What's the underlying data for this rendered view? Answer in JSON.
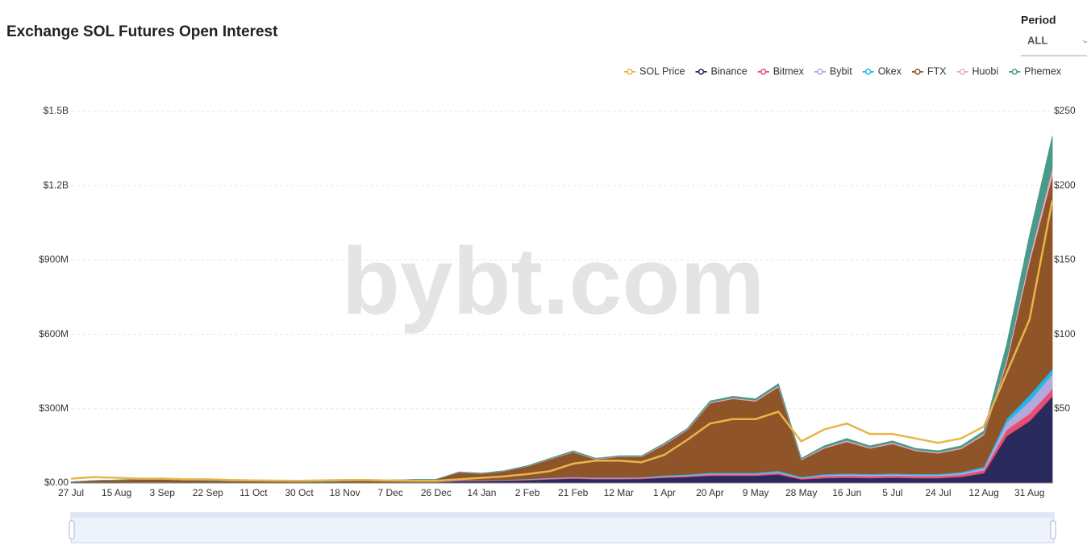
{
  "title": "Exchange SOL Futures Open Interest",
  "period": {
    "label": "Period",
    "value": "ALL"
  },
  "chart_data": {
    "type": "area",
    "watermark": "bybt.com",
    "categories": [
      "27 Jul",
      null,
      "15 Aug",
      null,
      "3 Sep",
      null,
      "22 Sep",
      null,
      "11 Oct",
      null,
      "30 Oct",
      null,
      "18 Nov",
      null,
      "7 Dec",
      null,
      "26 Dec",
      null,
      "14 Jan",
      null,
      "2 Feb",
      null,
      "21 Feb",
      null,
      "12 Mar",
      null,
      "1 Apr",
      null,
      "20 Apr",
      null,
      "9 May",
      null,
      "28 May",
      null,
      "16 Jun",
      null,
      "5 Jul",
      null,
      "24 Jul",
      null,
      "12 Aug",
      null,
      "31 Aug",
      null
    ],
    "ylim": [
      0,
      1500000000
    ],
    "yticks": [
      {
        "value": 0,
        "label": "$0.00"
      },
      {
        "value": 300000000,
        "label": "$300M"
      },
      {
        "value": 600000000,
        "label": "$600M"
      },
      {
        "value": 900000000,
        "label": "$900M"
      },
      {
        "value": 1200000000,
        "label": "$1.2B"
      },
      {
        "value": 1500000000,
        "label": "$1.5B"
      }
    ],
    "y2lim": [
      0,
      250
    ],
    "y2ticks": [
      {
        "value": 50,
        "label": "$50"
      },
      {
        "value": 100,
        "label": "$100"
      },
      {
        "value": 150,
        "label": "$150"
      },
      {
        "value": 200,
        "label": "$200"
      },
      {
        "value": 250,
        "label": "$250"
      }
    ],
    "grid": true,
    "stacked": true,
    "legend": "top-right",
    "series": [
      {
        "name": "SOL Price",
        "type": "line",
        "axis": "y2",
        "color": "#e8b54a",
        "values": [
          3,
          4,
          3.5,
          3,
          3,
          2.5,
          2.5,
          2,
          1.8,
          1.6,
          1.5,
          1.8,
          2,
          2,
          1.6,
          1.5,
          1.5,
          2.5,
          3.5,
          4.5,
          6,
          8,
          13,
          15,
          15,
          14,
          19,
          29,
          40,
          43,
          43,
          48,
          28,
          36,
          40,
          33,
          33,
          30,
          27,
          30,
          38,
          74,
          110,
          190
        ]
      },
      {
        "name": "Binance",
        "color": "#2b2a5e",
        "values": [
          1000000.0,
          2000000.0,
          2000000.0,
          3000000.0,
          3000000.0,
          2000000.0,
          2000000.0,
          2000000.0,
          2000000.0,
          2000000.0,
          1000000.0,
          1000000.0,
          2000000.0,
          2000000.0,
          2000000.0,
          3000000.0,
          3000000.0,
          8000000.0,
          8000000.0,
          10000000.0,
          12000000.0,
          15000000.0,
          18000000.0,
          16000000.0,
          16000000.0,
          17000000.0,
          22000000.0,
          25000000.0,
          30000000.0,
          30000000.0,
          30000000.0,
          35000000.0,
          15000000.0,
          20000000.0,
          22000000.0,
          20000000.0,
          22000000.0,
          20000000.0,
          20000000.0,
          25000000.0,
          40000000.0,
          190000000.0,
          250000000.0,
          350000000.0
        ]
      },
      {
        "name": "Bitmex",
        "color": "#e94d6f",
        "values": [
          500000.0,
          1000000.0,
          1000000.0,
          1000000.0,
          1000000.0,
          1000000.0,
          1000000.0,
          1000000.0,
          1000000.0,
          1000000.0,
          1000000.0,
          1000000.0,
          1000000.0,
          1000000.0,
          1000000.0,
          1000000.0,
          1000000.0,
          2000000.0,
          2000000.0,
          2000000.0,
          2000000.0,
          3000000.0,
          3000000.0,
          3000000.0,
          3000000.0,
          3000000.0,
          3000000.0,
          4000000.0,
          5000000.0,
          5000000.0,
          5000000.0,
          6000000.0,
          4000000.0,
          8000000.0,
          8000000.0,
          8000000.0,
          8000000.0,
          8000000.0,
          8000000.0,
          9000000.0,
          12000000.0,
          25000000.0,
          30000000.0,
          30000000.0
        ]
      },
      {
        "name": "Bybit",
        "color": "#b5a8dc",
        "values": [
          0,
          0,
          0,
          0,
          0,
          0,
          0,
          0,
          0,
          0,
          0,
          0,
          0,
          0,
          0,
          0,
          0,
          1000000.0,
          1000000.0,
          1000000.0,
          2000000.0,
          2000000.0,
          2000000.0,
          2000000.0,
          2000000.0,
          2000000.0,
          3000000.0,
          3000000.0,
          3000000.0,
          3000000.0,
          3000000.0,
          4000000.0,
          3000000.0,
          4000000.0,
          5000000.0,
          5000000.0,
          5000000.0,
          5000000.0,
          5000000.0,
          6000000.0,
          8000000.0,
          30000000.0,
          50000000.0,
          60000000.0
        ]
      },
      {
        "name": "Okex",
        "color": "#1fb8e8",
        "values": [
          0,
          0,
          0,
          0,
          0,
          0,
          0,
          0,
          0,
          0,
          0,
          0,
          0,
          0,
          0,
          0,
          0,
          1000000.0,
          1000000.0,
          1000000.0,
          1000000.0,
          2000000.0,
          2000000.0,
          2000000.0,
          2000000.0,
          2000000.0,
          3000000.0,
          3000000.0,
          4000000.0,
          4000000.0,
          4000000.0,
          5000000.0,
          3000000.0,
          4000000.0,
          4000000.0,
          4000000.0,
          4000000.0,
          4000000.0,
          4000000.0,
          5000000.0,
          6000000.0,
          15000000.0,
          25000000.0,
          20000000.0
        ]
      },
      {
        "name": "FTX",
        "color": "#8f5428",
        "values": [
          3500000.0,
          7000000.0,
          9000000.0,
          11000000.0,
          11000000.0,
          9000000.0,
          7000000.0,
          5000000.0,
          5000000.0,
          4000000.0,
          4000000.0,
          4000000.0,
          5000000.0,
          7000000.0,
          9000000.0,
          10000000.0,
          11000000.0,
          31000000.0,
          26000000.0,
          34000000.0,
          50000000.0,
          74000000.0,
          100000000.0,
          73000000.0,
          83000000.0,
          82000000.0,
          124000000.0,
          179000000.0,
          280000000.0,
          298000000.0,
          288000000.0,
          338000000.0,
          68000000.0,
          104000000.0,
          128000000.0,
          103000000.0,
          119000000.0,
          93000000.0,
          83000000.0,
          93000000.0,
          128000000.0,
          225000000.0,
          535000000.0,
          780000000.0
        ]
      },
      {
        "name": "Huobi",
        "color": "#f0a6c4",
        "values": [
          0,
          0,
          0,
          0,
          0,
          0,
          0,
          0,
          0,
          0,
          0,
          0,
          0,
          0,
          0,
          0,
          0,
          1000000.0,
          1000000.0,
          1000000.0,
          1000000.0,
          2000000.0,
          2000000.0,
          2000000.0,
          2000000.0,
          2000000.0,
          3000000.0,
          3000000.0,
          4000000.0,
          4000000.0,
          4000000.0,
          5000000.0,
          3000000.0,
          4000000.0,
          5000000.0,
          4000000.0,
          5000000.0,
          4000000.0,
          4000000.0,
          5000000.0,
          6000000.0,
          15000000.0,
          20000000.0,
          30000000.0
        ]
      },
      {
        "name": "Phemex",
        "color": "#4a9a8a",
        "values": [
          0,
          0,
          0,
          0,
          0,
          0,
          0,
          0,
          0,
          0,
          0,
          0,
          0,
          0,
          0,
          0,
          0,
          1000000.0,
          1000000.0,
          1000000.0,
          2000000.0,
          2000000.0,
          3000000.0,
          2000000.0,
          2000000.0,
          2000000.0,
          3000000.0,
          3000000.0,
          5000000.0,
          6000000.0,
          6000000.0,
          8000000.0,
          4000000.0,
          6000000.0,
          8000000.0,
          6000000.0,
          7000000.0,
          6000000.0,
          6000000.0,
          7000000.0,
          10000000.0,
          60000000.0,
          90000000.0,
          130000000.0
        ]
      }
    ]
  }
}
